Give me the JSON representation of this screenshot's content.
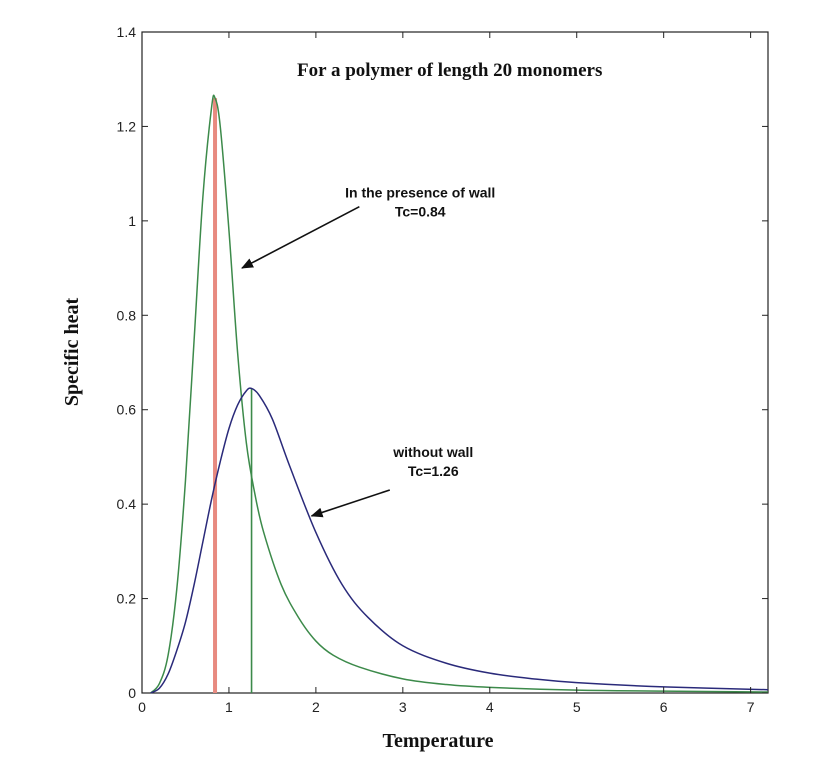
{
  "chart_data": {
    "type": "line",
    "title": "For a polymer of length 20 monomers",
    "xlabel": "Temperature",
    "ylabel": "Specific heat",
    "xlim": [
      0,
      7.2
    ],
    "ylim": [
      0,
      1.4
    ],
    "xticks": [
      0,
      1,
      2,
      3,
      4,
      5,
      6,
      7
    ],
    "yticks": [
      0,
      0.2,
      0.4,
      0.6,
      0.8,
      1,
      1.2,
      1.4
    ],
    "xtick_labels": [
      "0",
      "1",
      "2",
      "3",
      "4",
      "5",
      "6",
      "7"
    ],
    "ytick_labels": [
      "0",
      "0.2",
      "0.4",
      "0.6",
      "0.8",
      "1",
      "1.2",
      "1.4"
    ],
    "grid": false,
    "series": [
      {
        "name": "",
        "color": "#3c8a4a",
        "x": [
          0.1,
          0.2,
          0.3,
          0.4,
          0.5,
          0.6,
          0.7,
          0.8,
          0.84,
          0.9,
          1.0,
          1.1,
          1.2,
          1.3,
          1.4,
          1.6,
          1.8,
          2.0,
          2.2,
          2.5,
          3.0,
          3.5,
          4.0,
          5.0,
          6.0,
          7.2
        ],
        "y": [
          0.0,
          0.02,
          0.08,
          0.22,
          0.45,
          0.75,
          1.05,
          1.24,
          1.26,
          1.2,
          0.98,
          0.72,
          0.53,
          0.42,
          0.34,
          0.23,
          0.16,
          0.11,
          0.08,
          0.055,
          0.03,
          0.018,
          0.012,
          0.006,
          0.004,
          0.002
        ]
      },
      {
        "name": "",
        "color": "#2a2a7a",
        "x": [
          0.1,
          0.2,
          0.3,
          0.4,
          0.5,
          0.6,
          0.7,
          0.8,
          0.9,
          1.0,
          1.1,
          1.2,
          1.26,
          1.35,
          1.5,
          1.7,
          2.0,
          2.3,
          2.6,
          3.0,
          3.5,
          4.0,
          4.5,
          5.0,
          6.0,
          7.2
        ],
        "y": [
          0.0,
          0.01,
          0.04,
          0.09,
          0.15,
          0.23,
          0.32,
          0.41,
          0.49,
          0.56,
          0.61,
          0.64,
          0.645,
          0.63,
          0.58,
          0.48,
          0.34,
          0.23,
          0.16,
          0.1,
          0.063,
          0.042,
          0.03,
          0.022,
          0.013,
          0.007
        ]
      }
    ],
    "vertical_lines": [
      {
        "x": 0.84,
        "y": 1.26,
        "color": "#e88a80"
      },
      {
        "x": 1.26,
        "y": 0.645,
        "color": "#3c8a4a"
      }
    ],
    "annotations": [
      {
        "lines": [
          "In the presence of wall",
          "Tc=0.84"
        ],
        "text_x": 3.2,
        "text_y": 1.05,
        "arrow_from": [
          2.5,
          1.03
        ],
        "arrow_to": [
          1.15,
          0.9
        ]
      },
      {
        "lines": [
          "without wall",
          "Tc=1.26"
        ],
        "text_x": 3.35,
        "text_y": 0.5,
        "arrow_from": [
          2.85,
          0.43
        ],
        "arrow_to": [
          1.95,
          0.375
        ]
      }
    ]
  }
}
